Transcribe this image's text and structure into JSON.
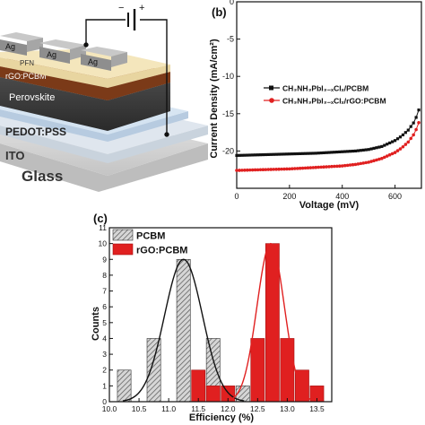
{
  "panel_a": {
    "layers": [
      "Ag",
      "Ag",
      "Ag",
      "PFN",
      "rGO:PCBM",
      "Perovskite",
      "PEDOT:PSS",
      "ITO",
      "Glass"
    ],
    "electrode_minus": "−",
    "electrode_plus": "+"
  },
  "chart_data": [
    {
      "panel": "(b)",
      "type": "line",
      "xlabel": "Voltage (mV)",
      "ylabel": "Current Density (mA/cm²)",
      "xlim": [
        0,
        700
      ],
      "ylim": [
        -25,
        0
      ],
      "xticks": [
        "0",
        "200",
        "400",
        "600"
      ],
      "yticks": [
        "0",
        "-5",
        "-10",
        "-15",
        "-20"
      ],
      "legend_position": "middle-left",
      "series": [
        {
          "name": "CH₃NH₃PbI₃₋ₓClₓ/PCBM",
          "color": "#111111",
          "marker": "square",
          "x": [
            0,
            100,
            200,
            300,
            400,
            450,
            500,
            550,
            600,
            625,
            650,
            675,
            690
          ],
          "y": [
            -20.6,
            -20.5,
            -20.4,
            -20.3,
            -20.1,
            -20.0,
            -19.8,
            -19.4,
            -18.6,
            -18.0,
            -17.2,
            -16.0,
            -14.5
          ]
        },
        {
          "name": "CH₃NH₃PbI₃₋ₓClₓ/rGO:PCBM",
          "color": "#e02020",
          "marker": "circle",
          "x": [
            0,
            100,
            200,
            300,
            400,
            450,
            500,
            550,
            600,
            625,
            650,
            675,
            690
          ],
          "y": [
            -22.6,
            -22.5,
            -22.4,
            -22.2,
            -22.0,
            -21.8,
            -21.5,
            -21.0,
            -20.2,
            -19.6,
            -18.8,
            -17.6,
            -16.2
          ]
        }
      ]
    },
    {
      "panel": "(c)",
      "type": "bar",
      "xlabel": "Efficiency (%)",
      "ylabel": "Counts",
      "xlim": [
        10,
        13.75
      ],
      "ylim": [
        0,
        11
      ],
      "xticks": [
        "10.0",
        "10.5",
        "11.0",
        "11.5",
        "12.0",
        "12.5",
        "13.0",
        "13.5"
      ],
      "yticks": [
        "0",
        "1",
        "2",
        "3",
        "4",
        "5",
        "6",
        "7",
        "8",
        "9",
        "10",
        "11"
      ],
      "legend_position": "top-left",
      "series": [
        {
          "name": "PCBM",
          "color": "#cccccc",
          "hatch": true,
          "x": [
            10.25,
            10.75,
            11.25,
            11.75,
            12.25
          ],
          "values": [
            2,
            4,
            9,
            4,
            1
          ]
        },
        {
          "name": "rGO:PCBM",
          "color": "#e02020",
          "x": [
            11.5,
            11.75,
            12.0,
            12.5,
            12.75,
            13.0,
            13.25,
            13.5
          ],
          "values": [
            2,
            1,
            1,
            4,
            10,
            4,
            2,
            1
          ]
        }
      ],
      "fits": [
        {
          "series": "PCBM",
          "color": "#111111",
          "mean": 11.25,
          "sigma": 0.32,
          "peak": 9
        },
        {
          "series": "rGO:PCBM",
          "color": "#e02020",
          "mean": 12.72,
          "sigma": 0.23,
          "peak": 10
        }
      ]
    }
  ]
}
